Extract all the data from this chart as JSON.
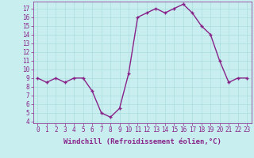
{
  "x": [
    0,
    1,
    2,
    3,
    4,
    5,
    6,
    7,
    8,
    9,
    10,
    11,
    12,
    13,
    14,
    15,
    16,
    17,
    18,
    19,
    20,
    21,
    22,
    23
  ],
  "y": [
    9,
    8.5,
    9,
    8.5,
    9,
    9,
    7.5,
    5,
    4.5,
    5.5,
    9.5,
    16,
    16.5,
    17,
    16.5,
    17,
    17.5,
    16.5,
    15,
    14,
    11,
    8.5,
    9,
    9
  ],
  "line_color": "#882288",
  "marker": "+",
  "bg_color": "#c8eef0",
  "grid_color": "#aadddd",
  "xlabel": "Windchill (Refroidissement éolien,°C)",
  "ylim": [
    3.8,
    17.8
  ],
  "xlim": [
    -0.5,
    23.5
  ],
  "yticks": [
    4,
    5,
    6,
    7,
    8,
    9,
    10,
    11,
    12,
    13,
    14,
    15,
    16,
    17
  ],
  "xticks": [
    0,
    1,
    2,
    3,
    4,
    5,
    6,
    7,
    8,
    9,
    10,
    11,
    12,
    13,
    14,
    15,
    16,
    17,
    18,
    19,
    20,
    21,
    22,
    23
  ],
  "tick_fontsize": 5.5,
  "xlabel_fontsize": 6.5,
  "line_width": 1.0,
  "marker_size": 3.5
}
